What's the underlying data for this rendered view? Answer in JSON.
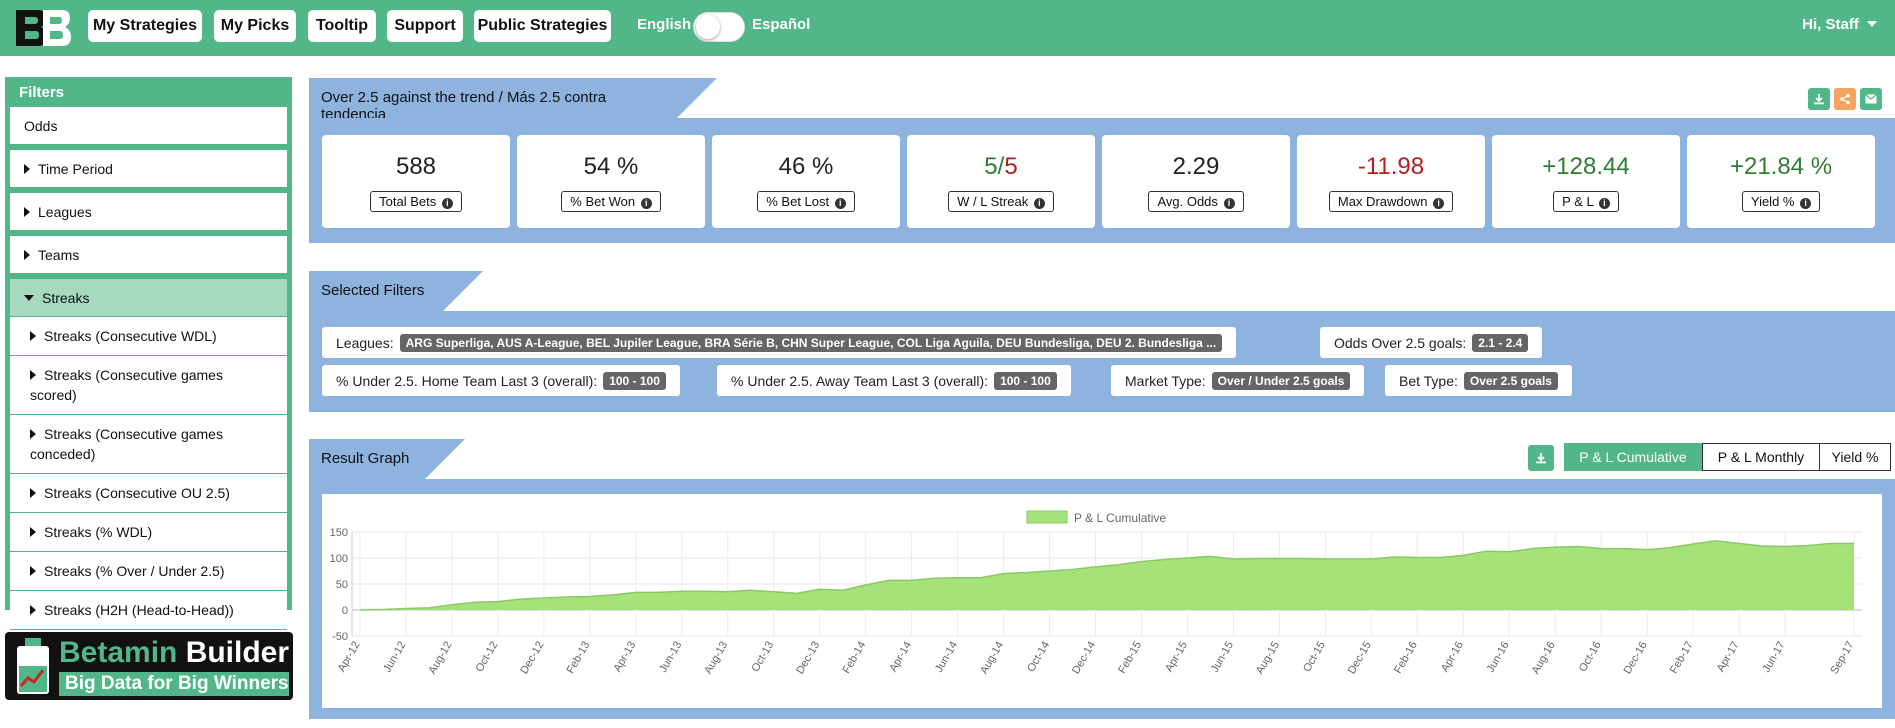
{
  "header": {
    "logo_alt": "BB logo",
    "nav": [
      "My Strategies",
      "My Picks",
      "Tooltip",
      "Support",
      "Public Strategies"
    ],
    "lang_left": "English",
    "lang_right": "Español",
    "user": "Hi, Staff"
  },
  "sidebar": {
    "title": "Filters",
    "top_items": [
      "Odds",
      "Time Period",
      "Leagues",
      "Teams",
      "Streaks"
    ],
    "streaks": [
      "Streaks (Consecutive WDL)",
      "Streaks (Consecutive games scored)",
      "Streaks (Consecutive games conceded)",
      "Streaks (Consecutive OU 2.5)",
      "Streaks (% WDL)",
      "Streaks (% Over / Under 2.5)",
      "Streaks (H2H (Head-to-Head))"
    ]
  },
  "promo": {
    "title_a": "Betamin",
    "title_b": " Builder",
    "subtitle": "Big Data for Big Winners"
  },
  "strategy": {
    "title": "Over 2.5 against the trend / Más 2.5 contra tendencia",
    "stats": [
      {
        "value": "588",
        "label": "Total Bets"
      },
      {
        "value": "54 %",
        "label": "% Bet Won"
      },
      {
        "value": "46 %",
        "label": "% Bet Lost"
      },
      {
        "value_w": "5",
        "value_sep": "/",
        "value_l": "5",
        "label": "W / L Streak"
      },
      {
        "value": "2.29",
        "label": "Avg. Odds"
      },
      {
        "value": "-11.98",
        "label": "Max Drawdown"
      },
      {
        "value": "+128.44",
        "label": "P & L"
      },
      {
        "value": "+21.84 %",
        "label": "Yield %"
      }
    ]
  },
  "filters": {
    "title": "Selected Filters",
    "leagues_label": "Leagues:",
    "leagues_value": "ARG Superliga, AUS A-League, BEL Jupiler League, BRA Série B, CHN Super League, COL Liga Aguila, DEU Bundesliga, DEU 2. Bundesliga ...",
    "odds_label": "Odds Over 2.5 goals:",
    "odds_value": "2.1 - 2.4",
    "home_label": "% Under 2.5. Home Team Last 3 (overall):",
    "home_value": "100 - 100",
    "away_label": "% Under 2.5. Away Team Last 3 (overall):",
    "away_value": "100 - 100",
    "market_label": "Market Type:",
    "market_value": "Over / Under 2.5 goals",
    "bet_label": "Bet Type:",
    "bet_value": "Over 2.5 goals"
  },
  "graph": {
    "title": "Result Graph",
    "buttons": [
      "P & L Cumulative",
      "P & L Monthly",
      "Yield %"
    ],
    "active": "P & L Cumulative"
  },
  "colors": {
    "brand": "#52b788",
    "panel": "#8fb3df",
    "area": "#a5e37a"
  },
  "chart_data": {
    "type": "area",
    "title": "",
    "legend": [
      "P & L Cumulative"
    ],
    "legend_position": "top",
    "grid": true,
    "ylim": [
      -50,
      150
    ],
    "yticks": [
      -50,
      0,
      50,
      100,
      150
    ],
    "xticklabels": [
      "Apr-12",
      "Jun-12",
      "Aug-12",
      "Oct-12",
      "Dec-12",
      "Feb-13",
      "Apr-13",
      "Jun-13",
      "Aug-13",
      "Oct-13",
      "Dec-13",
      "Feb-14",
      "Apr-14",
      "Jun-14",
      "Aug-14",
      "Oct-14",
      "Dec-14",
      "Feb-15",
      "Apr-15",
      "Jun-15",
      "Aug-15",
      "Oct-15",
      "Dec-15",
      "Feb-16",
      "Apr-16",
      "Jun-16",
      "Aug-16",
      "Oct-16",
      "Dec-16",
      "Feb-17",
      "Apr-17",
      "Jun-17",
      "Sep-17"
    ],
    "series": [
      {
        "name": "P & L Cumulative",
        "x": [
          "Apr-12",
          "May-12",
          "Jun-12",
          "Jul-12",
          "Aug-12",
          "Sep-12",
          "Oct-12",
          "Nov-12",
          "Dec-12",
          "Jan-13",
          "Feb-13",
          "Mar-13",
          "Apr-13",
          "May-13",
          "Jun-13",
          "Jul-13",
          "Aug-13",
          "Sep-13",
          "Oct-13",
          "Nov-13",
          "Dec-13",
          "Jan-14",
          "Feb-14",
          "Mar-14",
          "Apr-14",
          "May-14",
          "Jun-14",
          "Jul-14",
          "Aug-14",
          "Sep-14",
          "Oct-14",
          "Nov-14",
          "Dec-14",
          "Jan-15",
          "Feb-15",
          "Mar-15",
          "Apr-15",
          "May-15",
          "Jun-15",
          "Jul-15",
          "Aug-15",
          "Sep-15",
          "Oct-15",
          "Nov-15",
          "Dec-15",
          "Jan-16",
          "Feb-16",
          "Mar-16",
          "Apr-16",
          "May-16",
          "Jun-16",
          "Jul-16",
          "Aug-16",
          "Sep-16",
          "Oct-16",
          "Nov-16",
          "Dec-16",
          "Jan-17",
          "Feb-17",
          "Mar-17",
          "Apr-17",
          "May-17",
          "Jun-17",
          "Jul-17",
          "Aug-17",
          "Sep-17"
        ],
        "values": [
          0,
          1,
          3,
          4,
          10,
          15,
          16,
          21,
          23,
          25,
          26,
          29,
          34,
          34,
          36,
          36,
          35,
          38,
          35,
          32,
          40,
          38,
          48,
          57,
          57,
          61,
          62,
          62,
          70,
          72,
          75,
          78,
          83,
          87,
          93,
          97,
          100,
          103,
          98,
          99,
          99,
          99,
          98,
          98,
          98,
          102,
          101,
          101,
          105,
          113,
          112,
          118,
          121,
          122,
          118,
          118,
          116,
          120,
          127,
          133,
          128,
          123,
          122,
          124,
          128,
          128
        ]
      }
    ]
  }
}
